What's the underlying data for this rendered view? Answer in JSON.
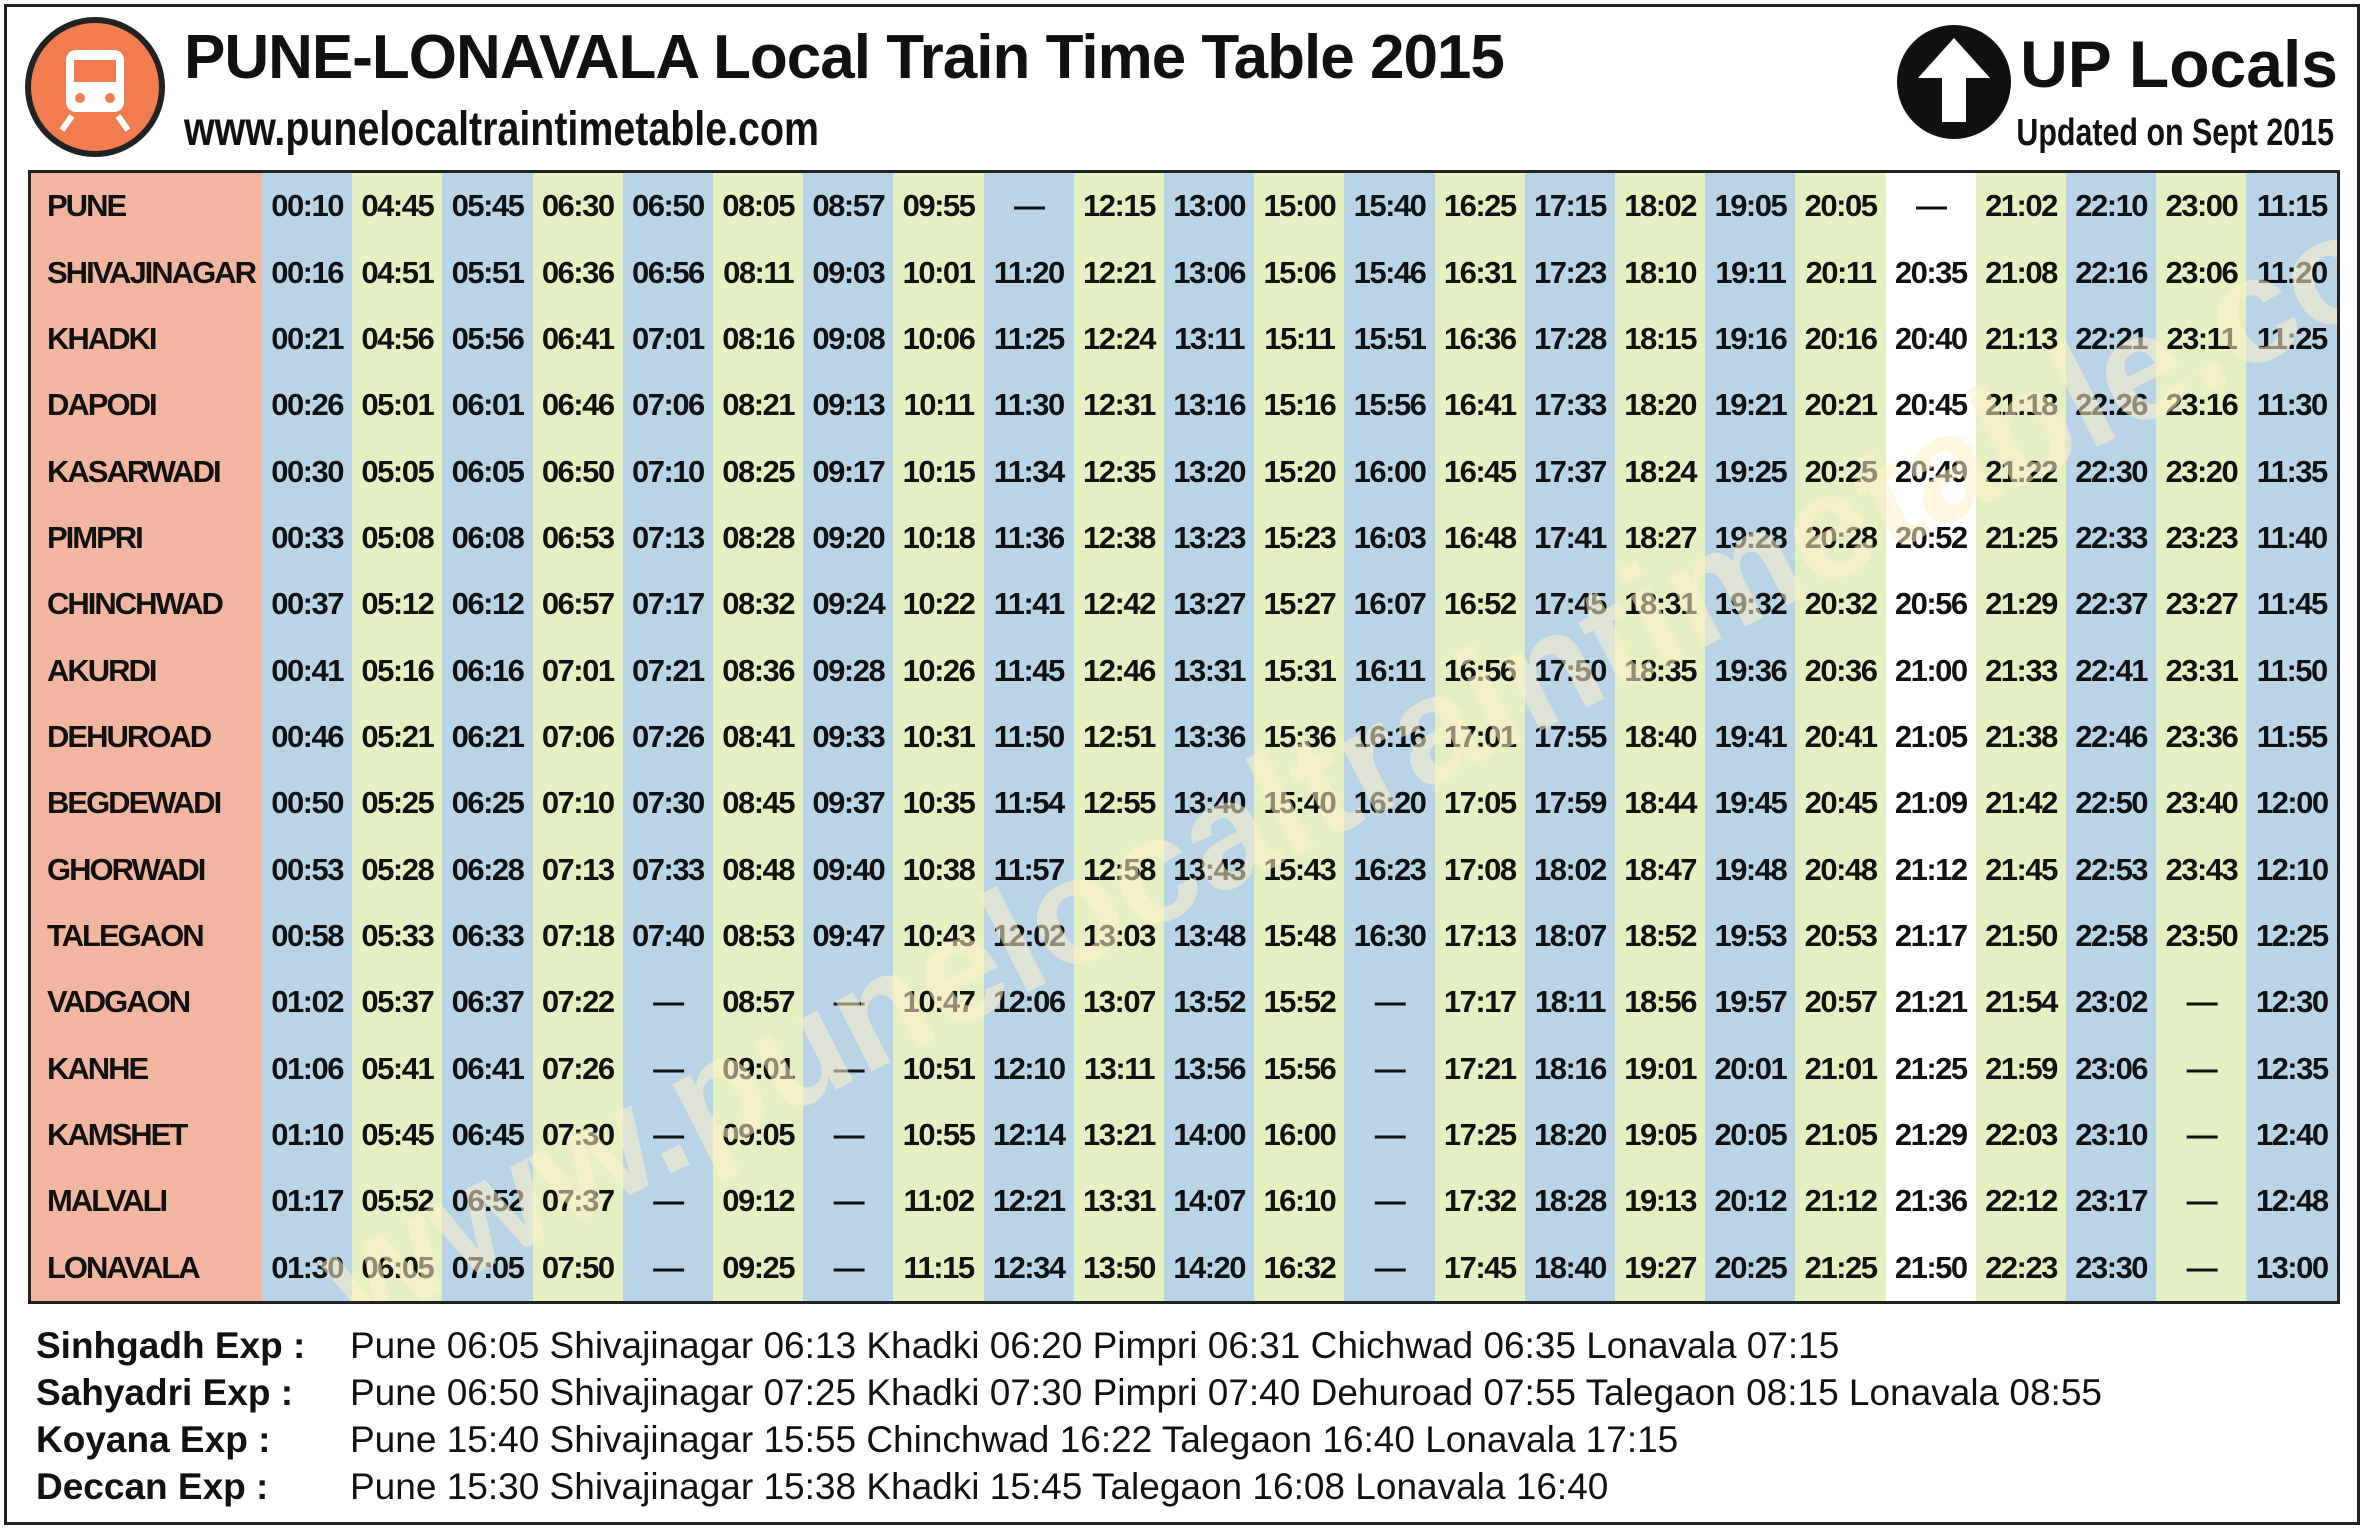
{
  "header": {
    "title": "PUNE-LONAVALA Local Train Time Table 2015",
    "website": "www.punelocaltraintimetable.com",
    "direction": "UP Locals",
    "updated": "Updated on Sept 2015"
  },
  "watermark": "www.punelocaltraintimetable.com",
  "table": {
    "rows": [
      {
        "station": "PUNE",
        "times": [
          "00:10",
          "04:45",
          "05:45",
          "06:30",
          "06:50",
          "08:05",
          "08:57",
          "09:55",
          "—",
          "12:15",
          "13:00",
          "15:00",
          "15:40",
          "16:25",
          "17:15",
          "18:02",
          "19:05",
          "20:05",
          "—",
          "21:02",
          "22:10",
          "23:00",
          "11:15"
        ]
      },
      {
        "station": "SHIVAJINAGAR",
        "times": [
          "00:16",
          "04:51",
          "05:51",
          "06:36",
          "06:56",
          "08:11",
          "09:03",
          "10:01",
          "11:20",
          "12:21",
          "13:06",
          "15:06",
          "15:46",
          "16:31",
          "17:23",
          "18:10",
          "19:11",
          "20:11",
          "20:35",
          "21:08",
          "22:16",
          "23:06",
          "11:20"
        ]
      },
      {
        "station": "KHADKI",
        "times": [
          "00:21",
          "04:56",
          "05:56",
          "06:41",
          "07:01",
          "08:16",
          "09:08",
          "10:06",
          "11:25",
          "12:24",
          "13:11",
          "15:11",
          "15:51",
          "16:36",
          "17:28",
          "18:15",
          "19:16",
          "20:16",
          "20:40",
          "21:13",
          "22:21",
          "23:11",
          "11:25"
        ]
      },
      {
        "station": "DAPODI",
        "times": [
          "00:26",
          "05:01",
          "06:01",
          "06:46",
          "07:06",
          "08:21",
          "09:13",
          "10:11",
          "11:30",
          "12:31",
          "13:16",
          "15:16",
          "15:56",
          "16:41",
          "17:33",
          "18:20",
          "19:21",
          "20:21",
          "20:45",
          "21:18",
          "22:26",
          "23:16",
          "11:30"
        ]
      },
      {
        "station": "KASARWADI",
        "times": [
          "00:30",
          "05:05",
          "06:05",
          "06:50",
          "07:10",
          "08:25",
          "09:17",
          "10:15",
          "11:34",
          "12:35",
          "13:20",
          "15:20",
          "16:00",
          "16:45",
          "17:37",
          "18:24",
          "19:25",
          "20:25",
          "20:49",
          "21:22",
          "22:30",
          "23:20",
          "11:35"
        ]
      },
      {
        "station": "PIMPRI",
        "times": [
          "00:33",
          "05:08",
          "06:08",
          "06:53",
          "07:13",
          "08:28",
          "09:20",
          "10:18",
          "11:36",
          "12:38",
          "13:23",
          "15:23",
          "16:03",
          "16:48",
          "17:41",
          "18:27",
          "19:28",
          "20:28",
          "20:52",
          "21:25",
          "22:33",
          "23:23",
          "11:40"
        ]
      },
      {
        "station": "CHINCHWAD",
        "times": [
          "00:37",
          "05:12",
          "06:12",
          "06:57",
          "07:17",
          "08:32",
          "09:24",
          "10:22",
          "11:41",
          "12:42",
          "13:27",
          "15:27",
          "16:07",
          "16:52",
          "17:45",
          "18:31",
          "19:32",
          "20:32",
          "20:56",
          "21:29",
          "22:37",
          "23:27",
          "11:45"
        ]
      },
      {
        "station": "AKURDI",
        "times": [
          "00:41",
          "05:16",
          "06:16",
          "07:01",
          "07:21",
          "08:36",
          "09:28",
          "10:26",
          "11:45",
          "12:46",
          "13:31",
          "15:31",
          "16:11",
          "16:56",
          "17:50",
          "18:35",
          "19:36",
          "20:36",
          "21:00",
          "21:33",
          "22:41",
          "23:31",
          "11:50"
        ]
      },
      {
        "station": "DEHUROAD",
        "times": [
          "00:46",
          "05:21",
          "06:21",
          "07:06",
          "07:26",
          "08:41",
          "09:33",
          "10:31",
          "11:50",
          "12:51",
          "13:36",
          "15:36",
          "16:16",
          "17:01",
          "17:55",
          "18:40",
          "19:41",
          "20:41",
          "21:05",
          "21:38",
          "22:46",
          "23:36",
          "11:55"
        ]
      },
      {
        "station": "BEGDEWADI",
        "times": [
          "00:50",
          "05:25",
          "06:25",
          "07:10",
          "07:30",
          "08:45",
          "09:37",
          "10:35",
          "11:54",
          "12:55",
          "13:40",
          "15:40",
          "16:20",
          "17:05",
          "17:59",
          "18:44",
          "19:45",
          "20:45",
          "21:09",
          "21:42",
          "22:50",
          "23:40",
          "12:00"
        ]
      },
      {
        "station": "GHORWADI",
        "times": [
          "00:53",
          "05:28",
          "06:28",
          "07:13",
          "07:33",
          "08:48",
          "09:40",
          "10:38",
          "11:57",
          "12:58",
          "13:43",
          "15:43",
          "16:23",
          "17:08",
          "18:02",
          "18:47",
          "19:48",
          "20:48",
          "21:12",
          "21:45",
          "22:53",
          "23:43",
          "12:10"
        ]
      },
      {
        "station": "TALEGAON",
        "times": [
          "00:58",
          "05:33",
          "06:33",
          "07:18",
          "07:40",
          "08:53",
          "09:47",
          "10:43",
          "12:02",
          "13:03",
          "13:48",
          "15:48",
          "16:30",
          "17:13",
          "18:07",
          "18:52",
          "19:53",
          "20:53",
          "21:17",
          "21:50",
          "22:58",
          "23:50",
          "12:25"
        ]
      },
      {
        "station": "VADGAON",
        "times": [
          "01:02",
          "05:37",
          "06:37",
          "07:22",
          "—",
          "08:57",
          "—",
          "10:47",
          "12:06",
          "13:07",
          "13:52",
          "15:52",
          "—",
          "17:17",
          "18:11",
          "18:56",
          "19:57",
          "20:57",
          "21:21",
          "21:54",
          "23:02",
          "—",
          "12:30"
        ]
      },
      {
        "station": "KANHE",
        "times": [
          "01:06",
          "05:41",
          "06:41",
          "07:26",
          "—",
          "09:01",
          "—",
          "10:51",
          "12:10",
          "13:11",
          "13:56",
          "15:56",
          "—",
          "17:21",
          "18:16",
          "19:01",
          "20:01",
          "21:01",
          "21:25",
          "21:59",
          "23:06",
          "—",
          "12:35"
        ]
      },
      {
        "station": "KAMSHET",
        "times": [
          "01:10",
          "05:45",
          "06:45",
          "07:30",
          "—",
          "09:05",
          "—",
          "10:55",
          "12:14",
          "13:21",
          "14:00",
          "16:00",
          "—",
          "17:25",
          "18:20",
          "19:05",
          "20:05",
          "21:05",
          "21:29",
          "22:03",
          "23:10",
          "—",
          "12:40"
        ]
      },
      {
        "station": "MALVALI",
        "times": [
          "01:17",
          "05:52",
          "06:52",
          "07:37",
          "—",
          "09:12",
          "—",
          "11:02",
          "12:21",
          "13:31",
          "14:07",
          "16:10",
          "—",
          "17:32",
          "18:28",
          "19:13",
          "20:12",
          "21:12",
          "21:36",
          "22:12",
          "23:17",
          "—",
          "12:48"
        ]
      },
      {
        "station": "LONAVALA",
        "times": [
          "01:30",
          "06:05",
          "07:05",
          "07:50",
          "—",
          "09:25",
          "—",
          "11:15",
          "12:34",
          "13:50",
          "14:20",
          "16:32",
          "—",
          "17:45",
          "18:40",
          "19:27",
          "20:25",
          "21:25",
          "21:50",
          "22:23",
          "23:30",
          "—",
          "13:00"
        ]
      }
    ]
  },
  "express": [
    {
      "name": "Sinhgadh Exp :",
      "schedule": "Pune 06:05 Shivajinagar 06:13 Khadki 06:20 Pimpri 06:31 Chichwad 06:35 Lonavala 07:15"
    },
    {
      "name": "Sahyadri Exp :",
      "schedule": "Pune 06:50 Shivajinagar 07:25 Khadki 07:30 Pimpri 07:40 Dehuroad 07:55 Talegaon 08:15 Lonavala 08:55"
    },
    {
      "name": "Koyana Exp :",
      "schedule": "Pune 15:40 Shivajinagar 15:55 Chinchwad 16:22 Talegaon 16:40 Lonavala 17:15"
    },
    {
      "name": "Deccan Exp :",
      "schedule": "Pune 15:30 Shivajinagar 15:38 Khadki 15:45 Talegaon 16:08 Lonavala 16:40"
    }
  ]
}
